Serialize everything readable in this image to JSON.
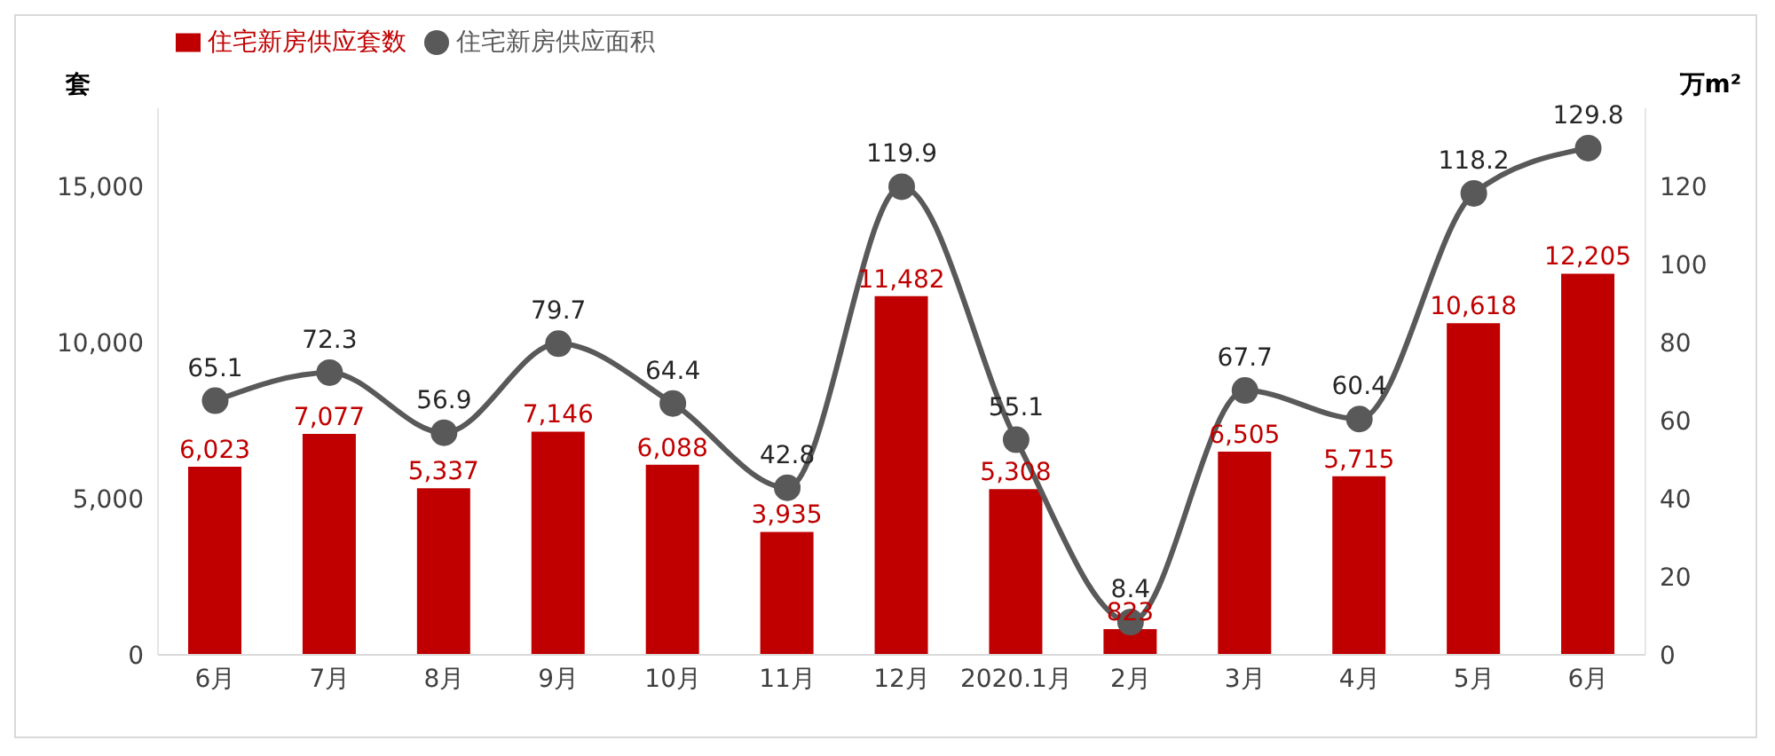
{
  "chart_data": {
    "type": "bar",
    "ylabel": "套",
    "y2label": "万m²",
    "categories": [
      "6月",
      "7月",
      "8月",
      "9月",
      "10月",
      "11月",
      "12月",
      "2020.1月",
      "2月",
      "3月",
      "4月",
      "5月",
      "6月"
    ],
    "series": [
      {
        "name": "住宅新房供应套数",
        "color": "#c00000",
        "values": [
          6023,
          7077,
          5337,
          7146,
          6088,
          3935,
          11482,
          5308,
          823,
          6505,
          5715,
          10618,
          12205
        ],
        "value_labels": [
          "6,023",
          "7,077",
          "5,337",
          "7,146",
          "6,088",
          "3,935",
          "11,482",
          "5,308",
          "823",
          "6,505",
          "5,715",
          "10,618",
          "12,205"
        ]
      },
      {
        "name": "住宅新房供应面积",
        "type": "line",
        "axis": "y2",
        "color": "#595959",
        "values": [
          65.1,
          72.3,
          56.9,
          79.7,
          64.4,
          42.8,
          119.9,
          55.1,
          8.4,
          67.7,
          60.4,
          118.2,
          129.8
        ]
      }
    ],
    "ylim": [
      0,
      17500
    ],
    "yticks": [
      0,
      {
        "value": 5000,
        "label": "5,000"
      },
      {
        "value": 10000,
        "label": "10,000"
      },
      {
        "value": 15000,
        "label": "15,000"
      }
    ],
    "y2lim": [
      0,
      140
    ],
    "y2ticks": [
      0,
      20,
      40,
      60,
      80,
      100,
      120
    ],
    "data_labels": true,
    "legend": "top left",
    "grid": false,
    "marker": "circle",
    "line_style": "solid"
  }
}
